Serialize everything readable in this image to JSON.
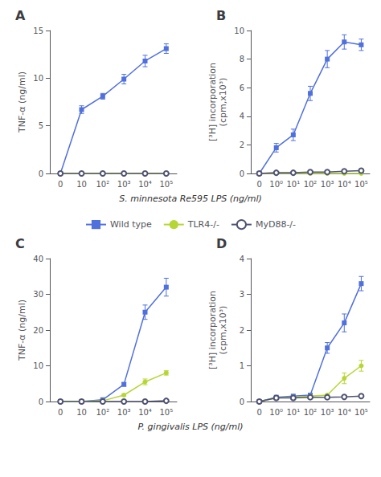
{
  "chart_data": [
    {
      "type": "line",
      "title": "A",
      "x_label": "S. minnesota Re595 LPS (ng/ml)",
      "y_label": "TNF-α (ng/ml)",
      "categories": [
        "0",
        "10",
        "10²",
        "10³",
        "10⁴",
        "10⁵"
      ],
      "ylim": [
        0,
        15
      ],
      "yticks": [
        0,
        5,
        10,
        15
      ],
      "grid": false,
      "series": [
        {
          "name": "Wild type",
          "marker": "square",
          "values": [
            0,
            6.7,
            8.1,
            9.9,
            11.8,
            13.1
          ],
          "errors": [
            0,
            0.4,
            0.3,
            0.5,
            0.6,
            0.5
          ]
        },
        {
          "name": "TLR4-/-",
          "marker": "circle",
          "values": [
            0,
            0,
            0,
            0,
            0,
            0
          ],
          "errors": [
            0,
            0,
            0,
            0,
            0,
            0
          ]
        },
        {
          "name": "MyD88-/-",
          "marker": "open_circle",
          "values": [
            0,
            0,
            0,
            0,
            0,
            0
          ],
          "errors": [
            0,
            0,
            0,
            0,
            0,
            0
          ]
        }
      ]
    },
    {
      "type": "line",
      "title": "B",
      "y_label": "[³H] incorporation\n(cpm,x10³)",
      "categories": [
        "0",
        "10⁰",
        "10¹",
        "10²",
        "10³",
        "10⁴",
        "10⁵"
      ],
      "ylim": [
        0,
        10
      ],
      "yticks": [
        0,
        2,
        4,
        6,
        8,
        10
      ],
      "grid": false,
      "series": [
        {
          "name": "Wild type",
          "marker": "square",
          "values": [
            0,
            1.8,
            2.7,
            5.6,
            8.0,
            9.2,
            9.0
          ],
          "errors": [
            0,
            0.3,
            0.4,
            0.5,
            0.6,
            0.5,
            0.4
          ]
        },
        {
          "name": "TLR4-/-",
          "marker": "circle",
          "values": [
            0,
            0,
            0,
            0,
            0,
            0,
            0
          ],
          "errors": [
            0,
            0,
            0,
            0,
            0,
            0,
            0
          ]
        },
        {
          "name": "MyD88-/-",
          "marker": "open_circle",
          "values": [
            0,
            0.05,
            0.05,
            0.1,
            0.1,
            0.15,
            0.2
          ],
          "errors": [
            0,
            0.02,
            0.02,
            0.03,
            0.03,
            0.04,
            0.05
          ]
        }
      ]
    },
    {
      "type": "line",
      "title": "C",
      "x_label": "P. gingivalis LPS (ng/ml)",
      "y_label": "TNF-α (ng/ml)",
      "categories": [
        "0",
        "10",
        "10²",
        "10³",
        "10⁴",
        "10⁵"
      ],
      "ylim": [
        0,
        40
      ],
      "yticks": [
        0,
        10,
        20,
        30,
        40
      ],
      "grid": false,
      "series": [
        {
          "name": "Wild type",
          "marker": "square",
          "values": [
            0,
            0,
            0.5,
            4.8,
            25.0,
            32.0
          ],
          "errors": [
            0,
            0,
            0.2,
            0.5,
            2.0,
            2.5
          ]
        },
        {
          "name": "TLR4-/-",
          "marker": "circle",
          "values": [
            0,
            0,
            0.2,
            1.8,
            5.5,
            8.0
          ],
          "errors": [
            0,
            0,
            0.1,
            0.3,
            0.8,
            0.6
          ]
        },
        {
          "name": "MyD88-/-",
          "marker": "open_circle",
          "values": [
            0,
            0,
            0,
            0,
            0,
            0.2
          ],
          "errors": [
            0,
            0,
            0,
            0,
            0,
            0.05
          ]
        }
      ]
    },
    {
      "type": "line",
      "title": "D",
      "y_label": "[³H] incorporation\n(cpm,x10³)",
      "categories": [
        "0",
        "10⁰",
        "10¹",
        "10²",
        "10³",
        "10⁴",
        "10⁵"
      ],
      "ylim": [
        0,
        4
      ],
      "yticks": [
        0,
        1,
        2,
        3,
        4
      ],
      "grid": false,
      "series": [
        {
          "name": "Wild type",
          "marker": "square",
          "values": [
            0,
            0.12,
            0.15,
            0.18,
            1.5,
            2.2,
            3.3
          ],
          "errors": [
            0,
            0.02,
            0.02,
            0.03,
            0.15,
            0.25,
            0.2
          ]
        },
        {
          "name": "TLR4-/-",
          "marker": "circle",
          "values": [
            0,
            0.1,
            0.12,
            0.15,
            0.18,
            0.65,
            1.0
          ],
          "errors": [
            0,
            0.02,
            0.02,
            0.02,
            0.03,
            0.15,
            0.15
          ]
        },
        {
          "name": "MyD88-/-",
          "marker": "open_circle",
          "values": [
            0,
            0.1,
            0.1,
            0.12,
            0.12,
            0.13,
            0.15
          ],
          "errors": [
            0,
            0.01,
            0.01,
            0.01,
            0.01,
            0.02,
            0.02
          ]
        }
      ]
    }
  ]
}
